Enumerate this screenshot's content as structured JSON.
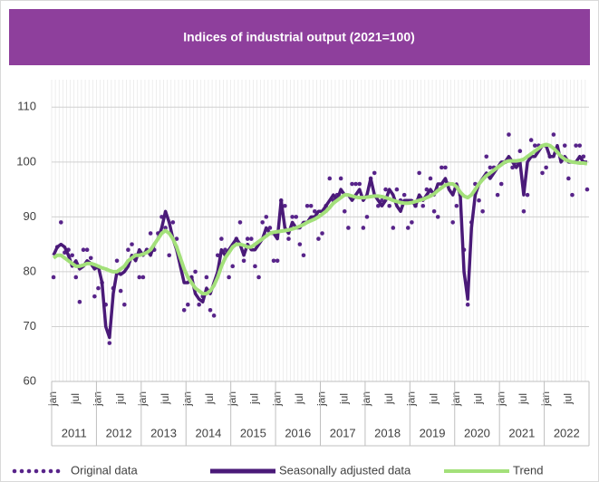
{
  "chart_data": {
    "type": "line",
    "title": "Indices of industrial output (2021=100)",
    "categories": [
      "jan",
      null,
      null,
      null,
      null,
      null,
      "jul",
      null,
      null,
      null,
      null,
      null,
      "jan",
      null,
      null,
      null,
      null,
      null,
      "jul",
      null,
      null,
      null,
      null,
      null,
      "jan",
      null,
      null,
      null,
      null,
      null,
      "jul",
      null,
      null,
      null,
      null,
      null,
      "jan",
      null,
      null,
      null,
      null,
      null,
      "jul",
      null,
      null,
      null,
      null,
      null,
      "jan",
      null,
      null,
      null,
      null,
      null,
      "jul",
      null,
      null,
      null,
      null,
      null,
      "jan",
      null,
      null,
      null,
      null,
      null,
      "jul",
      null,
      null,
      null,
      null,
      null,
      "jan",
      null,
      null,
      null,
      null,
      null,
      "jul",
      null,
      null,
      null,
      null,
      null,
      "jan",
      null,
      null,
      null,
      null,
      null,
      "jul",
      null,
      null,
      null,
      null,
      null,
      "jan",
      null,
      null,
      null,
      null,
      null,
      "jul",
      null,
      null,
      null,
      null,
      null,
      "jan",
      null,
      null,
      null,
      null,
      null,
      "jul",
      null,
      null,
      null,
      null,
      null,
      "jan",
      null,
      null,
      null,
      null,
      null,
      "jul",
      null,
      null,
      null,
      null,
      null,
      "jan",
      null,
      null,
      null,
      null,
      null,
      "jul",
      null,
      null,
      null,
      null,
      null
    ],
    "years": [
      2011,
      2012,
      2013,
      2014,
      2015,
      2016,
      2017,
      2018,
      2019,
      2020,
      2021,
      2022
    ],
    "ylim": [
      60,
      115
    ],
    "yticks": [
      60,
      70,
      80,
      90,
      100,
      110
    ],
    "grid": true,
    "series": [
      {
        "name": "Original data",
        "color": "#58248a",
        "style": "dots",
        "values": [
          79,
          84.5,
          89,
          83.5,
          84,
          83,
          79,
          74.5,
          84,
          84,
          82.5,
          75.5,
          77,
          78,
          74,
          67,
          77,
          82,
          76.5,
          74,
          84,
          85,
          83,
          79,
          79,
          84,
          87,
          84,
          87,
          90,
          88,
          83,
          89,
          86,
          82,
          73,
          74,
          79,
          80,
          74,
          75.5,
          79,
          73,
          72,
          83,
          86,
          84,
          79,
          81,
          86,
          89,
          82,
          86,
          86,
          81,
          79,
          89,
          90,
          88,
          82,
          82,
          93,
          92,
          86,
          90,
          90,
          85,
          83,
          92,
          92,
          91,
          86,
          87,
          92,
          97,
          93,
          94,
          97,
          91,
          88,
          96,
          96,
          96,
          88,
          90,
          97,
          98,
          92,
          93,
          95,
          92,
          88,
          95,
          93,
          94,
          88,
          89,
          92,
          98,
          92,
          95,
          97,
          91,
          90,
          99,
          99,
          96,
          89,
          92,
          94,
          84,
          74,
          89,
          96,
          93,
          91,
          101,
          99,
          99,
          94,
          96,
          100,
          105,
          99,
          100,
          102,
          91,
          94,
          104,
          103,
          103,
          98,
          99,
          101,
          105,
          102,
          101,
          103,
          97,
          94,
          103,
          103,
          101,
          95
        ]
      },
      {
        "name": "Seasonally adjusted data",
        "color": "#4a1a78",
        "style": "thick",
        "values": [
          83,
          84.5,
          85,
          84.5,
          83,
          81,
          82,
          80.5,
          81,
          82,
          81.5,
          80.5,
          81,
          78,
          70,
          68,
          76,
          80,
          79.5,
          80,
          81,
          83,
          82,
          84,
          83,
          84,
          83,
          85,
          86,
          88,
          91,
          89,
          86,
          84,
          81,
          78,
          78,
          79,
          76,
          75,
          74.5,
          77,
          76,
          78,
          80,
          84,
          83,
          84,
          85,
          86,
          85,
          83,
          85,
          84,
          84,
          85,
          86,
          88,
          87,
          87,
          86,
          93,
          88,
          87,
          89,
          88,
          88,
          89,
          89,
          90,
          90,
          91,
          91,
          92,
          93,
          94,
          93,
          95,
          94,
          94,
          93,
          94,
          95,
          93,
          94,
          97,
          94,
          93,
          92,
          93,
          95,
          94,
          92,
          91,
          93,
          93,
          93,
          92,
          94,
          93,
          94,
          95,
          94,
          96,
          96,
          97,
          95,
          94,
          96,
          94,
          80,
          75,
          88,
          94,
          96,
          97,
          98,
          97,
          98,
          99,
          100,
          100,
          101,
          100,
          99,
          100,
          94,
          100,
          101,
          101,
          102,
          103,
          103,
          101,
          101,
          103,
          100,
          101,
          100,
          100,
          100,
          101,
          100,
          100
        ]
      },
      {
        "name": "Trend",
        "color": "#a3e07a",
        "style": "line",
        "values": [
          82.5,
          83,
          83,
          82.5,
          82,
          81.5,
          81,
          81,
          81.2,
          81.5,
          81.5,
          81.3,
          81,
          80.7,
          80.5,
          80.2,
          80,
          80,
          80.5,
          81,
          82,
          82.5,
          83,
          83,
          83.2,
          83.5,
          84,
          85,
          86,
          87,
          87.5,
          87,
          86,
          84.5,
          82.5,
          80.5,
          79,
          78,
          77,
          76.5,
          76,
          76,
          76.5,
          77.5,
          79,
          81,
          82.5,
          83.5,
          84.5,
          85,
          85,
          84.8,
          84.5,
          84.5,
          85,
          85.5,
          86,
          86.5,
          87,
          87.2,
          87.3,
          87.4,
          87.5,
          87.6,
          87.8,
          88,
          88.3,
          88.6,
          89,
          89.3,
          89.6,
          90,
          90.5,
          91,
          91.7,
          92.5,
          93,
          93.5,
          94,
          94,
          93.8,
          93.6,
          93.5,
          93.5,
          93.6,
          93.7,
          93.8,
          93.8,
          93.7,
          93.5,
          93.3,
          93,
          92.8,
          92.6,
          92.5,
          92.5,
          92.6,
          92.8,
          93,
          93.2,
          93.5,
          93.8,
          94.2,
          94.8,
          95.3,
          95.8,
          96,
          96,
          95.5,
          94.5,
          93.8,
          93.5,
          94,
          95,
          96,
          96.8,
          97.5,
          98,
          98.5,
          99,
          99.5,
          100,
          100.2,
          100.2,
          100.2,
          100.3,
          100.5,
          101,
          101.5,
          102,
          102.5,
          103,
          103.2,
          103,
          102.5,
          101.8,
          101,
          100.5,
          100.2,
          100,
          99.9,
          99.8,
          99.8,
          99.7
        ]
      }
    ]
  }
}
